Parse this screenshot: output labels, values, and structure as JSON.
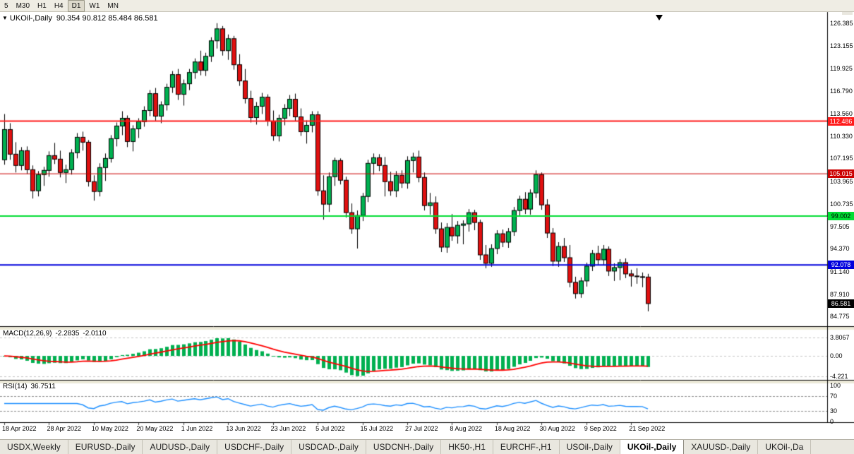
{
  "toolbar": {
    "timeframes": [
      "5",
      "M30",
      "H1",
      "H4",
      "D1",
      "W1",
      "MN"
    ],
    "active": "D1"
  },
  "chart": {
    "title_marker": "▼",
    "title_symbol": "UKOil-,Daily",
    "title_ohlc": "90.354 90.812 85.484 86.581",
    "axis_top_price": 126.385,
    "axis_bottom_price": 84.775,
    "price_axis_labels": [
      "126.385",
      "123.155",
      "119.925",
      "116.790",
      "113.560",
      "110.330",
      "107.195",
      "103.965",
      "100.735",
      "97.505",
      "94.370",
      "91.140",
      "87.910",
      "84.775"
    ],
    "current_price": 86.581,
    "current_price_label": "86.581",
    "levels": [
      {
        "price": 112.486,
        "label": "112.486",
        "color": "#ff1a1a",
        "line_width": 2,
        "text_color": "#ffffff"
      },
      {
        "price": 105.015,
        "label": "105.015",
        "color": "#cc0000",
        "line_width": 1,
        "text_color": "#ffffff"
      },
      {
        "price": 99.002,
        "label": "99.002",
        "color": "#00dd33",
        "line_width": 2,
        "text_color": "#000000"
      },
      {
        "price": 92.078,
        "label": "92.078",
        "color": "#0000dd",
        "line_width": 2,
        "text_color": "#ffffff"
      }
    ]
  },
  "macd": {
    "label": "MACD(12,26,9)",
    "value_main": "-2.2835",
    "value_signal": "-2.0110",
    "fast": 12,
    "slow": 26,
    "signal_period": 9,
    "axis_labels": [
      {
        "v": 3.8067,
        "label": "3.8067"
      },
      {
        "v": 0,
        "label": "0.00"
      },
      {
        "v": -4.221,
        "label": "-4.221"
      }
    ]
  },
  "rsi": {
    "label": "RSI(14)",
    "value": "36.7511",
    "period": 14,
    "levels": [
      70,
      30
    ],
    "axis_labels": [
      {
        "v": 100,
        "label": "100"
      },
      {
        "v": 70,
        "label": "70"
      },
      {
        "v": 30,
        "label": "30"
      },
      {
        "v": 0,
        "label": "0"
      }
    ]
  },
  "tabs": {
    "items": [
      "USDX,Weekly",
      "EURUSD-,Daily",
      "AUDUSD-,Daily",
      "USDCHF-,Daily",
      "USDCAD-,Daily",
      "USDCNH-,Daily",
      "HK50-,H1",
      "EURCHF-,H1",
      "USOil-,Daily",
      "UKOil-,Daily",
      "XAUUSD-,Daily",
      "UKOil-,Da"
    ],
    "active_index": 9,
    "scroll_icon": "◄"
  },
  "colors": {
    "bull": "#00b050",
    "bear": "#e01010",
    "candle_outline": "#000000",
    "macd_histogram": "#00b050",
    "macd_signal": "#ff0000",
    "rsi_line": "#1e90ff",
    "current_tag_bg": "#000000",
    "current_tag_text": "#ffffff",
    "axis_text": "#000000"
  },
  "chart_data": {
    "type": "candlestick",
    "symbol": "UKOil-",
    "timeframe": "Daily",
    "ohlc_current": {
      "open": 90.354,
      "high": 90.812,
      "low": 85.484,
      "close": 86.581
    },
    "x_labels": [
      {
        "i": 0,
        "label": "18 Apr 2022"
      },
      {
        "i": 8,
        "label": "28 Apr 2022"
      },
      {
        "i": 16,
        "label": "10 May 2022"
      },
      {
        "i": 24,
        "label": "20 May 2022"
      },
      {
        "i": 32,
        "label": "1 Jun 2022"
      },
      {
        "i": 40,
        "label": "13 Jun 2022"
      },
      {
        "i": 48,
        "label": "23 Jun 2022"
      },
      {
        "i": 56,
        "label": "5 Jul 2022"
      },
      {
        "i": 64,
        "label": "15 Jul 2022"
      },
      {
        "i": 72,
        "label": "27 Jul 2022"
      },
      {
        "i": 80,
        "label": "8 Aug 2022"
      },
      {
        "i": 88,
        "label": "18 Aug 2022"
      },
      {
        "i": 96,
        "label": "30 Aug 2022"
      },
      {
        "i": 104,
        "label": "9 Sep 2022"
      },
      {
        "i": 112,
        "label": "21 Sep 2022"
      }
    ],
    "candles": [
      [
        107.0,
        113.5,
        106.3,
        111.3
      ],
      [
        111.3,
        112.2,
        107.0,
        107.8
      ],
      [
        107.8,
        109.5,
        105.2,
        106.2
      ],
      [
        106.2,
        108.8,
        105.5,
        108.3
      ],
      [
        108.3,
        108.9,
        105.0,
        105.6
      ],
      [
        105.6,
        106.2,
        101.5,
        102.6
      ],
      [
        102.6,
        105.4,
        101.8,
        104.9
      ],
      [
        104.9,
        106.0,
        103.3,
        105.5
      ],
      [
        105.5,
        108.2,
        104.6,
        107.6
      ],
      [
        107.6,
        109.4,
        106.4,
        107.1
      ],
      [
        107.1,
        108.3,
        104.5,
        105.2
      ],
      [
        105.2,
        106.3,
        103.7,
        105.6
      ],
      [
        105.6,
        108.5,
        104.9,
        108.0
      ],
      [
        108.0,
        110.8,
        107.2,
        110.2
      ],
      [
        110.2,
        111.0,
        108.3,
        109.5
      ],
      [
        109.5,
        109.8,
        103.2,
        103.9
      ],
      [
        103.9,
        104.8,
        101.2,
        102.5
      ],
      [
        102.5,
        106.5,
        101.8,
        105.9
      ],
      [
        105.9,
        107.9,
        104.0,
        107.2
      ],
      [
        107.2,
        110.5,
        106.6,
        110.0
      ],
      [
        110.0,
        112.3,
        108.9,
        111.8
      ],
      [
        111.8,
        113.9,
        110.5,
        112.9
      ],
      [
        112.9,
        113.3,
        108.8,
        109.6
      ],
      [
        109.6,
        111.9,
        108.2,
        111.4
      ],
      [
        111.4,
        112.9,
        110.1,
        112.4
      ],
      [
        112.4,
        114.6,
        111.7,
        114.0
      ],
      [
        114.0,
        116.9,
        113.2,
        116.4
      ],
      [
        116.4,
        117.2,
        112.5,
        113.2
      ],
      [
        113.2,
        115.3,
        112.2,
        114.8
      ],
      [
        114.8,
        117.8,
        114.0,
        117.3
      ],
      [
        117.3,
        119.6,
        116.5,
        119.1
      ],
      [
        119.1,
        119.9,
        115.5,
        116.3
      ],
      [
        116.3,
        118.4,
        114.7,
        117.8
      ],
      [
        117.8,
        119.9,
        116.9,
        119.4
      ],
      [
        119.4,
        121.4,
        118.5,
        120.9
      ],
      [
        120.9,
        122.5,
        119.0,
        119.7
      ],
      [
        119.7,
        122.2,
        118.9,
        121.7
      ],
      [
        121.7,
        124.4,
        120.9,
        123.9
      ],
      [
        123.9,
        126.4,
        122.8,
        125.6
      ],
      [
        125.6,
        126.0,
        121.8,
        122.5
      ],
      [
        122.5,
        124.8,
        121.2,
        124.2
      ],
      [
        124.2,
        124.6,
        119.8,
        120.5
      ],
      [
        120.5,
        122.0,
        117.5,
        118.2
      ],
      [
        118.2,
        119.9,
        115.0,
        115.7
      ],
      [
        115.7,
        116.8,
        112.3,
        113.0
      ],
      [
        113.0,
        115.2,
        112.0,
        114.6
      ],
      [
        114.6,
        116.5,
        113.5,
        115.9
      ],
      [
        115.9,
        116.3,
        111.8,
        112.5
      ],
      [
        112.5,
        114.0,
        109.7,
        110.4
      ],
      [
        110.4,
        113.4,
        109.6,
        112.9
      ],
      [
        112.9,
        114.9,
        111.9,
        114.3
      ],
      [
        114.3,
        116.2,
        113.2,
        115.6
      ],
      [
        115.6,
        116.4,
        112.5,
        113.1
      ],
      [
        113.1,
        114.3,
        110.4,
        111.0
      ],
      [
        111.0,
        112.6,
        109.3,
        111.9
      ],
      [
        111.9,
        113.9,
        110.9,
        113.4
      ],
      [
        113.4,
        113.9,
        101.9,
        102.6
      ],
      [
        102.6,
        104.8,
        98.5,
        100.7
      ],
      [
        100.7,
        105.2,
        99.6,
        104.6
      ],
      [
        104.6,
        107.3,
        103.3,
        106.9
      ],
      [
        106.9,
        107.2,
        103.5,
        104.1
      ],
      [
        104.1,
        104.6,
        98.8,
        99.5
      ],
      [
        99.5,
        100.8,
        96.5,
        97.2
      ],
      [
        97.2,
        99.8,
        94.4,
        99.1
      ],
      [
        99.1,
        102.3,
        98.3,
        101.8
      ],
      [
        101.8,
        107.0,
        101.0,
        106.5
      ],
      [
        106.5,
        107.9,
        104.9,
        107.3
      ],
      [
        107.3,
        107.8,
        105.4,
        106.2
      ],
      [
        106.2,
        107.4,
        101.8,
        103.9
      ],
      [
        103.9,
        105.3,
        101.9,
        102.6
      ],
      [
        102.6,
        105.4,
        101.7,
        104.8
      ],
      [
        104.8,
        105.5,
        103.0,
        103.7
      ],
      [
        103.7,
        107.5,
        102.9,
        106.9
      ],
      [
        106.9,
        108.0,
        105.2,
        107.4
      ],
      [
        107.4,
        108.3,
        103.8,
        104.5
      ],
      [
        104.5,
        105.2,
        99.8,
        100.5
      ],
      [
        100.5,
        102.3,
        99.2,
        100.9
      ],
      [
        100.9,
        101.8,
        96.5,
        97.2
      ],
      [
        97.2,
        98.1,
        93.9,
        94.6
      ],
      [
        94.6,
        98.0,
        93.8,
        97.4
      ],
      [
        97.4,
        99.3,
        95.5,
        96.2
      ],
      [
        96.2,
        98.3,
        95.1,
        97.7
      ],
      [
        97.7,
        98.4,
        95.0,
        97.9
      ],
      [
        97.9,
        100.0,
        96.8,
        99.5
      ],
      [
        99.5,
        99.9,
        97.0,
        98.1
      ],
      [
        98.1,
        98.5,
        92.8,
        93.5
      ],
      [
        93.5,
        94.9,
        91.6,
        92.3
      ],
      [
        92.3,
        95.0,
        91.8,
        94.4
      ],
      [
        94.4,
        97.0,
        93.6,
        96.5
      ],
      [
        96.5,
        97.1,
        94.6,
        95.3
      ],
      [
        95.3,
        97.3,
        94.5,
        96.8
      ],
      [
        96.8,
        100.3,
        96.2,
        99.8
      ],
      [
        99.8,
        101.9,
        99.0,
        101.4
      ],
      [
        101.4,
        102.4,
        99.3,
        100.0
      ],
      [
        100.0,
        102.8,
        99.2,
        102.3
      ],
      [
        102.3,
        105.5,
        101.6,
        104.9
      ],
      [
        104.9,
        105.2,
        99.9,
        100.6
      ],
      [
        100.6,
        101.4,
        95.9,
        96.6
      ],
      [
        96.6,
        97.3,
        91.9,
        92.6
      ],
      [
        92.6,
        95.3,
        91.8,
        94.7
      ],
      [
        94.7,
        95.9,
        92.5,
        93.1
      ],
      [
        93.1,
        94.9,
        88.9,
        89.6
      ],
      [
        89.6,
        90.4,
        87.3,
        88.0
      ],
      [
        88.0,
        90.3,
        87.4,
        89.8
      ],
      [
        89.8,
        92.4,
        89.0,
        91.9
      ],
      [
        91.9,
        94.2,
        91.2,
        93.7
      ],
      [
        93.7,
        94.8,
        92.1,
        92.8
      ],
      [
        92.8,
        94.9,
        92.0,
        94.3
      ],
      [
        94.3,
        94.7,
        90.5,
        91.2
      ],
      [
        91.2,
        92.3,
        89.8,
        91.7
      ],
      [
        91.7,
        92.9,
        89.9,
        92.4
      ],
      [
        92.4,
        93.0,
        90.2,
        90.8
      ],
      [
        90.8,
        91.4,
        89.0,
        90.5
      ],
      [
        90.5,
        91.6,
        89.4,
        90.4
      ],
      [
        90.4,
        91.0,
        88.9,
        90.35
      ],
      [
        90.354,
        90.812,
        85.484,
        86.581
      ]
    ]
  }
}
